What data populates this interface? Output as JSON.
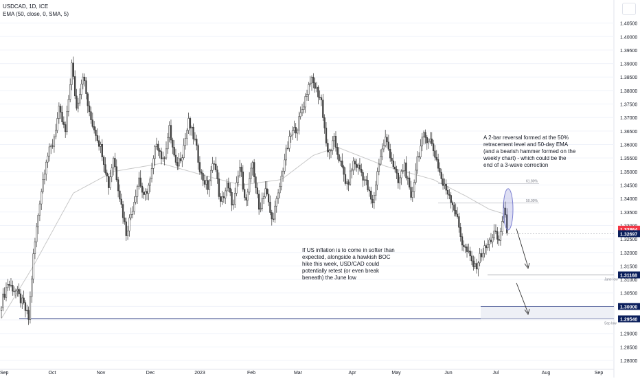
{
  "header": {
    "symbol_line": "USDCAD, 1D, ICE",
    "indicator_line": "EMA (50, close, 0, SMA, 5)"
  },
  "annotations": {
    "reversal_note": "A 2-bar reversal formed at the 50%\nretracement level and 50-day EMA\n(and a bearish hammer formed on the\nweekly chart) - which could be the\nend of a 3-wave correction",
    "inflation_note": "If US inflation is to come in softer than\nexpected, alongside a hawkish BOC\nhike this week, USD/CAD could\npotentially retest (or even break\nbeneath) the June low",
    "fib_618": "61.80%",
    "fib_50": "50.00%",
    "june_low": "June low",
    "sep_low": "Sep low"
  },
  "colors": {
    "up_candle": "#ffffff",
    "down_candle": "#4a4a4a",
    "wick": "#333333",
    "ema": "#c8c8c8",
    "price_badge": "#f23645",
    "navy_badge": "#0b1f5c",
    "support_line": "#1f2f7a",
    "highlight": "#7b7fd1"
  },
  "chart_data": {
    "type": "candlestick",
    "title": "USDCAD, 1D, ICE",
    "ylim": [
      1.2767,
      1.4105
    ],
    "y_ticks": [
      "1.40500",
      "1.40000",
      "1.39500",
      "1.39000",
      "1.38500",
      "1.38000",
      "1.37500",
      "1.37000",
      "1.36500",
      "1.36000",
      "1.35500",
      "1.35000",
      "1.34500",
      "1.34000",
      "1.33500",
      "1.33000",
      "1.32500",
      "1.32000",
      "1.31500",
      "1.31000",
      "1.30500",
      "1.30000",
      "1.29500",
      "1.29000",
      "1.28500",
      "1.28000"
    ],
    "x_ticks": [
      "Sep",
      "Oct",
      "Nov",
      "Dec",
      "2023",
      "Feb",
      "Mar",
      "Apr",
      "May",
      "Jun",
      "Jul",
      "Aug",
      "Sep"
    ],
    "price_labels": [
      {
        "value": 1.32864,
        "text": "1.32864",
        "style": "red"
      },
      {
        "value": 1.32697,
        "text": "1.32697",
        "style": "navy"
      },
      {
        "value": 1.31168,
        "text": "1.31168",
        "style": "navy"
      },
      {
        "value": 1.3,
        "text": "1.30000",
        "style": "navy"
      },
      {
        "value": 1.2954,
        "text": "1.29540",
        "style": "navy"
      }
    ],
    "levels": {
      "fib_618": 1.3455,
      "fib_50": 1.3383,
      "june_low": 1.31168,
      "sep_low": 1.2954
    },
    "anchors": [
      [
        0,
        1.3013
      ],
      [
        4,
        1.3086
      ],
      [
        9,
        1.3057
      ],
      [
        14,
        1.3003
      ],
      [
        17,
        1.2954
      ],
      [
        20,
        1.3186
      ],
      [
        24,
        1.3393
      ],
      [
        28,
        1.3547
      ],
      [
        32,
        1.3601
      ],
      [
        36,
        1.3725
      ],
      [
        40,
        1.3644
      ],
      [
        44,
        1.3895
      ],
      [
        47,
        1.3734
      ],
      [
        51,
        1.3864
      ],
      [
        55,
        1.3708
      ],
      [
        59,
        1.3645
      ],
      [
        63,
        1.3571
      ],
      [
        67,
        1.3449
      ],
      [
        70,
        1.3554
      ],
      [
        74,
        1.3409
      ],
      [
        78,
        1.3273
      ],
      [
        82,
        1.3367
      ],
      [
        86,
        1.3477
      ],
      [
        89,
        1.3399
      ],
      [
        93,
        1.3464
      ],
      [
        97,
        1.3614
      ],
      [
        101,
        1.3535
      ],
      [
        105,
        1.3657
      ],
      [
        109,
        1.3518
      ],
      [
        113,
        1.3568
      ],
      [
        117,
        1.3682
      ],
      [
        121,
        1.3611
      ],
      [
        125,
        1.3485
      ],
      [
        129,
        1.3441
      ],
      [
        133,
        1.3545
      ],
      [
        137,
        1.3378
      ],
      [
        141,
        1.3448
      ],
      [
        145,
        1.3371
      ],
      [
        149,
        1.3517
      ],
      [
        153,
        1.3386
      ],
      [
        157,
        1.3533
      ],
      [
        161,
        1.3358
      ],
      [
        165,
        1.3438
      ],
      [
        169,
        1.3318
      ],
      [
        173,
        1.341
      ],
      [
        177,
        1.3547
      ],
      [
        181,
        1.3636
      ],
      [
        185,
        1.3668
      ],
      [
        189,
        1.3752
      ],
      [
        193,
        1.3842
      ],
      [
        196,
        1.3815
      ],
      [
        200,
        1.3762
      ],
      [
        204,
        1.3559
      ],
      [
        208,
        1.3614
      ],
      [
        212,
        1.3528
      ],
      [
        216,
        1.3444
      ],
      [
        220,
        1.3534
      ],
      [
        224,
        1.351
      ],
      [
        228,
        1.3456
      ],
      [
        232,
        1.3375
      ],
      [
        236,
        1.3537
      ],
      [
        240,
        1.3621
      ],
      [
        244,
        1.3545
      ],
      [
        248,
        1.3456
      ],
      [
        252,
        1.3527
      ],
      [
        256,
        1.3391
      ],
      [
        260,
        1.3551
      ],
      [
        264,
        1.363
      ],
      [
        268,
        1.3617
      ],
      [
        272,
        1.3543
      ],
      [
        276,
        1.345
      ],
      [
        280,
        1.3416
      ],
      [
        284,
        1.3347
      ],
      [
        288,
        1.3237
      ],
      [
        292,
        1.3191
      ],
      [
        296,
        1.3142
      ],
      [
        300,
        1.3196
      ],
      [
        304,
        1.3227
      ],
      [
        308,
        1.3272
      ],
      [
        311,
        1.324
      ],
      [
        314,
        1.336
      ],
      [
        316,
        1.3287
      ]
    ],
    "ema_anchors": [
      [
        0,
        1.2955
      ],
      [
        20,
        1.315
      ],
      [
        45,
        1.342
      ],
      [
        70,
        1.35
      ],
      [
        100,
        1.353
      ],
      [
        130,
        1.348
      ],
      [
        150,
        1.345
      ],
      [
        175,
        1.347
      ],
      [
        195,
        1.356
      ],
      [
        210,
        1.359
      ],
      [
        240,
        1.352
      ],
      [
        270,
        1.347
      ],
      [
        290,
        1.341
      ],
      [
        305,
        1.336
      ],
      [
        316,
        1.334
      ]
    ]
  }
}
